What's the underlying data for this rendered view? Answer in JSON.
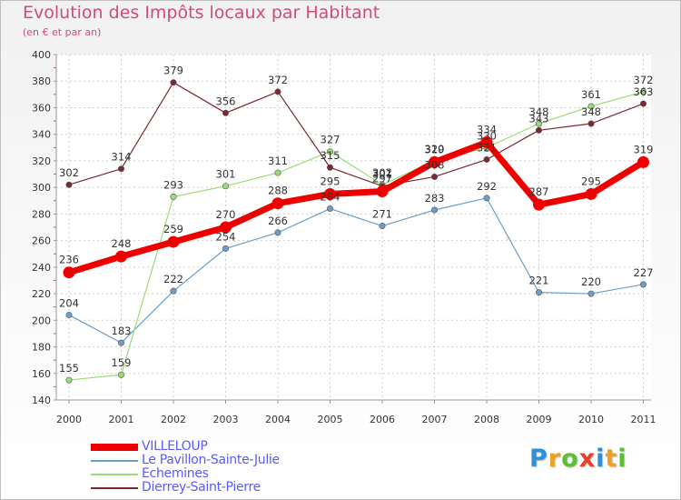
{
  "header": {
    "title": "Evolution des Impôts locaux par Habitant",
    "subtitle": "(en € et par an)"
  },
  "logo": {
    "text": "Proxiti",
    "letters": [
      {
        "ch": "P",
        "color": "#2f8fd8"
      },
      {
        "ch": "r",
        "color": "#f0a020"
      },
      {
        "ch": "o",
        "color": "#5bbf3a"
      },
      {
        "ch": "x",
        "color": "#e8402a"
      },
      {
        "ch": "i",
        "color": "#2f8fd8"
      },
      {
        "ch": "t",
        "color": "#f0a020"
      },
      {
        "ch": "i",
        "color": "#5bbf3a"
      }
    ]
  },
  "chart_data": {
    "type": "line",
    "title": "Evolution des Impôts locaux par Habitant",
    "subtitle": "(en € et par an)",
    "xlabel": "",
    "ylabel": "",
    "x": [
      "2000",
      "2001",
      "2002",
      "2003",
      "2004",
      "2005",
      "2006",
      "2007",
      "2008",
      "2009",
      "2010",
      "2011"
    ],
    "ylim": [
      140,
      400
    ],
    "yticks": [
      140,
      160,
      180,
      200,
      220,
      240,
      260,
      280,
      300,
      320,
      340,
      360,
      380,
      400
    ],
    "grid": true,
    "legend_position": "bottom-left",
    "series": [
      {
        "name": "VILLELOUP",
        "color": "#ee0000",
        "emphasis": true,
        "values": [
          236,
          248,
          259,
          270,
          288,
          295,
          297,
          319,
          334,
          287,
          295,
          319
        ]
      },
      {
        "name": "Le Pavillon-Sainte-Julie",
        "color": "#6b9ec8",
        "emphasis": false,
        "values": [
          204,
          183,
          222,
          254,
          266,
          284,
          271,
          283,
          292,
          221,
          220,
          227
        ]
      },
      {
        "name": "Echemines",
        "color": "#99dd77",
        "emphasis": false,
        "values": [
          155,
          159,
          293,
          301,
          311,
          327,
          302,
          320,
          330,
          348,
          361,
          372
        ]
      },
      {
        "name": "Dierrey-Saint-Pierre",
        "color": "#7a2a30",
        "emphasis": false,
        "values": [
          302,
          314,
          379,
          356,
          372,
          315,
          301,
          308,
          321,
          343,
          348,
          363
        ]
      }
    ]
  }
}
